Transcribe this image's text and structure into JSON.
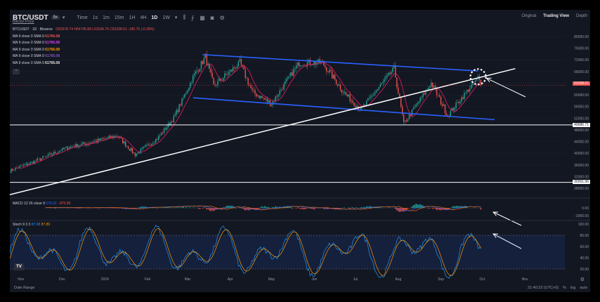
{
  "header": {
    "symbol": "BTC/USDT",
    "badge": "5x",
    "subtitle": "Bitcoin Price",
    "timeframes": [
      "Time",
      "1s",
      "1m",
      "15m",
      "1H",
      "4H",
      "1D",
      "1W"
    ],
    "active_timeframe": "1D",
    "views": [
      "Original",
      "Trading View",
      "Depth"
    ],
    "active_view": "Trading View"
  },
  "legend": {
    "title": "BTCUSDT · 1D · Binance",
    "ohlc": "O63578.74  H64745.88  L62538.75  C63298.01  -180.75 (-0.28%)",
    "ma_lines": [
      {
        "label": "MA 9 close 0 SMA 9",
        "value": "61766.08",
        "color": "#ef5350"
      },
      {
        "label": "MA 9 close 0 SMA 9",
        "value": "61766.08",
        "color": "#e040fb"
      },
      {
        "label": "MA 9 close 0 SMA 9",
        "value": "61766.08",
        "color": "#ff9800"
      },
      {
        "label": "MA 9 close 0 SMA 9",
        "value": "61766.08",
        "color": "#7e57c2"
      },
      {
        "label": "MA 9 close 0 SMA 9",
        "value": "61766.08",
        "color": "#e0e0e0"
      }
    ]
  },
  "price_axis": [
    "80000.00",
    "76000.00",
    "72000.00",
    "68000.00",
    "64000.00",
    "60000.00",
    "56000.00",
    "52000.00",
    "48000.00",
    "44000.00",
    "40000.00",
    "36000.00",
    "32000.00",
    "28000.00"
  ],
  "price_tags": {
    "last": "63298.01",
    "h1": "49686.71",
    "h2": "30001.96"
  },
  "macd": {
    "label": "MACD 12 26 close 9",
    "v1": "678.02",
    "v2": "-",
    "v3": "875.99",
    "axis": [
      "0.00",
      "-2000.00"
    ]
  },
  "stoch": {
    "label": "Stoch 9 3 3",
    "v1": "87.08",
    "v2": "87.89",
    "axis": [
      "100.00",
      "80.00",
      "60.00",
      "40.00",
      "20.00",
      "0.00"
    ]
  },
  "time_axis": [
    "Nov",
    "Dec",
    "2024",
    "Feb",
    "Mar",
    "Apr",
    "May",
    "Jun",
    "Jul",
    "Aug",
    "Sep",
    "Oct",
    "Nov"
  ],
  "footer": {
    "range": "Date Range",
    "time": "21:40:23 (UTC+9)",
    "pct": "%",
    "log": "log",
    "auto": "auto"
  },
  "colors": {
    "bg": "#131722",
    "up": "#26a69a",
    "down": "#ef5350",
    "channel": "#2962ff",
    "trendline": "#ffffff",
    "ma": "#e91e63",
    "stoch_k": "#2196f3",
    "stoch_d": "#ff9800"
  },
  "chart_data": {
    "type": "candlestick",
    "x_range": [
      "2023-10-24",
      "2024-11-30"
    ],
    "y_range": [
      25000,
      81000
    ],
    "close_anchors": [
      [
        "2023-10-24",
        34000
      ],
      [
        "2023-11-10",
        37000
      ],
      [
        "2023-12-05",
        42000
      ],
      [
        "2023-12-20",
        43500
      ],
      [
        "2024-01-10",
        46000
      ],
      [
        "2024-01-23",
        39500
      ],
      [
        "2024-02-08",
        45000
      ],
      [
        "2024-02-20",
        52000
      ],
      [
        "2024-03-05",
        66000
      ],
      [
        "2024-03-14",
        73000
      ],
      [
        "2024-03-20",
        63000
      ],
      [
        "2024-04-08",
        71000
      ],
      [
        "2024-04-17",
        61000
      ],
      [
        "2024-05-01",
        57000
      ],
      [
        "2024-05-21",
        71000
      ],
      [
        "2024-06-07",
        71000
      ],
      [
        "2024-06-24",
        60000
      ],
      [
        "2024-07-05",
        55000
      ],
      [
        "2024-07-29",
        69000
      ],
      [
        "2024-08-05",
        50000
      ],
      [
        "2024-08-25",
        64000
      ],
      [
        "2024-09-06",
        53000
      ],
      [
        "2024-09-28",
        66000
      ],
      [
        "2024-09-30",
        63298
      ]
    ],
    "channel_upper": [
      [
        "2024-03-12",
        73800
      ],
      [
        "2024-09-28",
        68200
      ]
    ],
    "channel_lower": [
      [
        "2024-03-05",
        59000
      ],
      [
        "2024-10-10",
        51500
      ]
    ],
    "trendline": [
      [
        "2023-10-24",
        25800
      ],
      [
        "2024-10-25",
        69000
      ]
    ],
    "horizontal_lines": [
      49686.71,
      30001.96
    ],
    "last_price": 63298.01
  }
}
